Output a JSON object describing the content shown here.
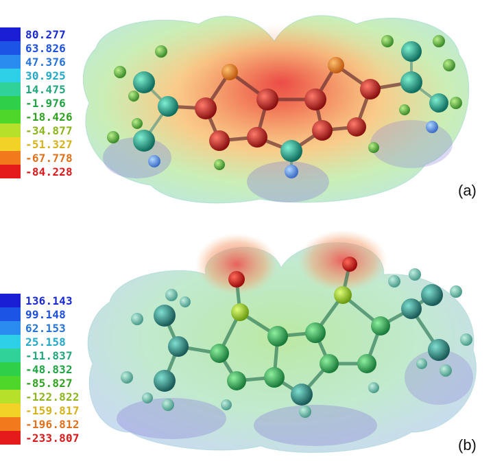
{
  "panels": [
    {
      "label": "(a)",
      "legend": {
        "values": [
          "80.277",
          "63.826",
          "47.376",
          "30.925",
          "14.475",
          "-1.976",
          "-18.426",
          "-34.877",
          "-51.327",
          "-67.778",
          "-84.228"
        ],
        "colors": [
          "#1a1fd6",
          "#1c55e6",
          "#2a8cef",
          "#2ed0e8",
          "#2fd39a",
          "#2fcf4a",
          "#4fd62a",
          "#b6e02a",
          "#f2d226",
          "#f17b1c",
          "#e51b1b"
        ],
        "text_colors": [
          "#1a2ad6",
          "#1c4fe0",
          "#2573d9",
          "#23a8c7",
          "#22a67a",
          "#1fa343",
          "#2fa21f",
          "#8cb51c",
          "#d5b21a",
          "#e0701a",
          "#d91a1a"
        ]
      }
    },
    {
      "label": "(b)",
      "legend": {
        "values": [
          "136.143",
          "99.148",
          "62.153",
          "25.158",
          "-11.837",
          "-48.832",
          "-85.827",
          "-122.822",
          "-159.817",
          "-196.812",
          "-233.807"
        ],
        "colors": [
          "#1a1fd6",
          "#1c55e6",
          "#2a8cef",
          "#2ed0e8",
          "#2fd39a",
          "#2fcf4a",
          "#4fd62a",
          "#b6e02a",
          "#f2d226",
          "#f17b1c",
          "#e51b1b"
        ],
        "text_colors": [
          "#1a2ad6",
          "#1c4fe0",
          "#2573d9",
          "#23a8c7",
          "#22a67a",
          "#1fa343",
          "#2fa21f",
          "#8cb51c",
          "#d5b21a",
          "#e0701a",
          "#d91a1a"
        ]
      }
    }
  ]
}
